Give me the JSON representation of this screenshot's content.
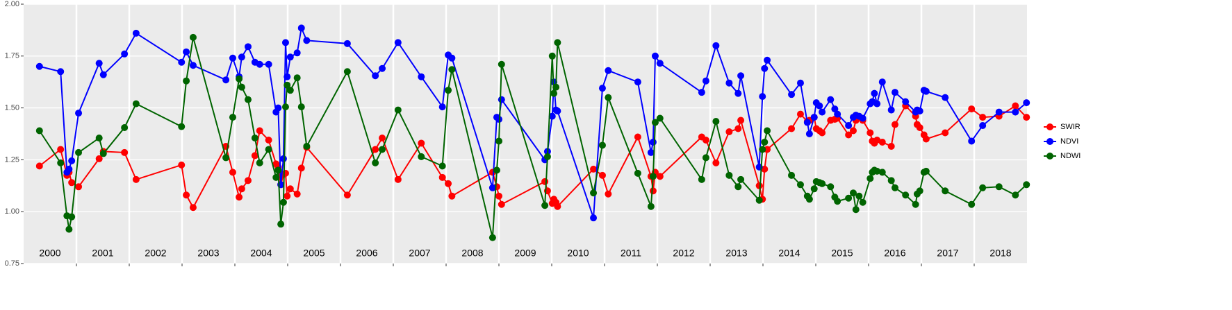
{
  "chart_data": {
    "type": "line",
    "x": [
      2000.3,
      2000.7,
      2000.82,
      2000.86,
      2000.91,
      2001.04,
      2001.43,
      2001.51,
      2001.91,
      2002.13,
      2002.99,
      2003.08,
      2003.21,
      2003.83,
      2003.96,
      2004.08,
      2004.13,
      2004.25,
      2004.38,
      2004.47,
      2004.64,
      2004.78,
      2004.82,
      2004.87,
      2004.92,
      2004.96,
      2004.99,
      2005.05,
      2005.18,
      2005.26,
      2005.36,
      2006.13,
      2006.66,
      2006.79,
      2007.09,
      2007.53,
      2007.93,
      2008.04,
      2008.11,
      2008.88,
      2008.96,
      2009.0,
      2009.05,
      2009.87,
      2009.92,
      2010.01,
      2010.04,
      2010.08,
      2010.11,
      2010.79,
      2010.96,
      2011.07,
      2011.63,
      2011.88,
      2011.92,
      2011.96,
      2012.05,
      2012.84,
      2012.92,
      2013.11,
      2013.36,
      2013.53,
      2013.58,
      2013.93,
      2013.99,
      2014.03,
      2014.08,
      2014.54,
      2014.71,
      2014.84,
      2014.88,
      2014.97,
      2015.01,
      2015.07,
      2015.12,
      2015.28,
      2015.36,
      2015.41,
      2015.62,
      2015.71,
      2015.76,
      2015.82,
      2015.89,
      2016.03,
      2016.07,
      2016.11,
      2016.16,
      2016.26,
      2016.43,
      2016.5,
      2016.7,
      2016.89,
      2016.92,
      2016.97,
      2017.05,
      2017.09,
      2017.45,
      2017.95,
      2018.16,
      2018.47,
      2018.78,
      2018.99
    ],
    "series": [
      {
        "name": "SWIR",
        "color": "#ff0000",
        "values": [
          1.22,
          1.3,
          1.175,
          1.19,
          1.14,
          1.12,
          1.255,
          1.29,
          1.285,
          1.155,
          1.225,
          1.08,
          1.02,
          1.315,
          1.19,
          1.07,
          1.11,
          1.15,
          1.27,
          1.39,
          1.345,
          1.23,
          1.215,
          1.13,
          1.18,
          1.185,
          1.075,
          1.11,
          1.085,
          1.21,
          1.31,
          1.08,
          1.3,
          1.355,
          1.155,
          1.33,
          1.165,
          1.135,
          1.075,
          1.19,
          1.12,
          1.075,
          1.035,
          1.145,
          1.1,
          1.04,
          1.06,
          1.045,
          1.025,
          1.205,
          1.175,
          1.085,
          1.36,
          1.17,
          1.1,
          1.19,
          1.17,
          1.36,
          1.345,
          1.235,
          1.385,
          1.4,
          1.44,
          1.125,
          1.06,
          1.205,
          1.3,
          1.4,
          1.47,
          1.435,
          1.44,
          1.455,
          1.4,
          1.39,
          1.38,
          1.44,
          1.445,
          1.45,
          1.37,
          1.39,
          1.44,
          1.455,
          1.44,
          1.38,
          1.34,
          1.33,
          1.345,
          1.335,
          1.315,
          1.42,
          1.51,
          1.46,
          1.42,
          1.405,
          1.37,
          1.35,
          1.38,
          1.495,
          1.455,
          1.46,
          1.51,
          1.455
        ]
      },
      {
        "name": "NDVI",
        "color": "#0000ff",
        "values": [
          1.7,
          1.675,
          1.19,
          1.205,
          1.245,
          1.475,
          1.715,
          1.66,
          1.76,
          1.86,
          1.72,
          1.77,
          1.705,
          1.635,
          1.74,
          1.65,
          1.745,
          1.795,
          1.72,
          1.71,
          1.71,
          1.48,
          1.5,
          1.13,
          1.255,
          1.815,
          1.65,
          1.745,
          1.765,
          1.885,
          1.825,
          1.81,
          1.655,
          1.69,
          1.815,
          1.65,
          1.505,
          1.755,
          1.74,
          1.115,
          1.455,
          1.445,
          1.54,
          1.25,
          1.29,
          1.46,
          1.625,
          1.49,
          1.485,
          0.97,
          1.595,
          1.68,
          1.625,
          1.285,
          1.335,
          1.75,
          1.715,
          1.575,
          1.63,
          1.8,
          1.62,
          1.57,
          1.655,
          1.215,
          1.555,
          1.69,
          1.73,
          1.565,
          1.62,
          1.43,
          1.375,
          1.455,
          1.525,
          1.51,
          1.48,
          1.54,
          1.495,
          1.47,
          1.415,
          1.455,
          1.465,
          1.46,
          1.45,
          1.52,
          1.53,
          1.57,
          1.52,
          1.625,
          1.49,
          1.575,
          1.53,
          1.48,
          1.49,
          1.485,
          1.585,
          1.58,
          1.55,
          1.34,
          1.415,
          1.48,
          1.48,
          1.525
        ]
      },
      {
        "name": "NDWI",
        "color": "#006400",
        "values": [
          1.39,
          1.235,
          0.98,
          0.915,
          0.975,
          1.285,
          1.355,
          1.28,
          1.405,
          1.52,
          1.41,
          1.63,
          1.84,
          1.26,
          1.455,
          1.64,
          1.6,
          1.54,
          1.355,
          1.235,
          1.3,
          1.165,
          1.2,
          0.94,
          1.045,
          1.505,
          1.61,
          1.585,
          1.645,
          1.505,
          1.315,
          1.675,
          1.235,
          1.3,
          1.49,
          1.265,
          1.22,
          1.585,
          1.685,
          0.875,
          1.2,
          1.34,
          1.71,
          1.03,
          1.265,
          1.75,
          1.57,
          1.6,
          1.815,
          1.09,
          1.32,
          1.55,
          1.185,
          1.025,
          1.17,
          1.43,
          1.45,
          1.155,
          1.26,
          1.435,
          1.175,
          1.12,
          1.155,
          1.055,
          1.3,
          1.335,
          1.39,
          1.175,
          1.13,
          1.075,
          1.06,
          1.11,
          1.145,
          1.14,
          1.135,
          1.12,
          1.07,
          1.05,
          1.065,
          1.09,
          1.01,
          1.075,
          1.045,
          1.16,
          1.19,
          1.2,
          1.195,
          1.19,
          1.15,
          1.115,
          1.08,
          1.035,
          1.085,
          1.1,
          1.19,
          1.195,
          1.1,
          1.035,
          1.115,
          1.12,
          1.08,
          1.13
        ]
      }
    ],
    "xlim": [
      2000,
      2019
    ],
    "xticks": [
      2001,
      2002,
      2003,
      2004,
      2005,
      2006,
      2007,
      2008,
      2009,
      2010,
      2011,
      2012,
      2013,
      2014,
      2015,
      2016,
      2017,
      2018
    ],
    "x_labels": [
      {
        "value": 2000.5,
        "label": "2000"
      },
      {
        "value": 2001.5,
        "label": "2001"
      },
      {
        "value": 2002.5,
        "label": "2002"
      },
      {
        "value": 2003.5,
        "label": "2003"
      },
      {
        "value": 2004.5,
        "label": "2004"
      },
      {
        "value": 2005.5,
        "label": "2005"
      },
      {
        "value": 2006.5,
        "label": "2006"
      },
      {
        "value": 2007.5,
        "label": "2007"
      },
      {
        "value": 2008.5,
        "label": "2008"
      },
      {
        "value": 2009.5,
        "label": "2009"
      },
      {
        "value": 2010.5,
        "label": "2010"
      },
      {
        "value": 2011.5,
        "label": "2011"
      },
      {
        "value": 2012.5,
        "label": "2012"
      },
      {
        "value": 2013.5,
        "label": "2013"
      },
      {
        "value": 2014.5,
        "label": "2014"
      },
      {
        "value": 2015.5,
        "label": "2015"
      },
      {
        "value": 2016.5,
        "label": "2016"
      },
      {
        "value": 2017.5,
        "label": "2017"
      },
      {
        "value": 2018.5,
        "label": "2018"
      }
    ],
    "ylim": [
      0.75,
      2.0
    ],
    "yticks": [
      {
        "value": 0.75,
        "label": "0.75"
      },
      {
        "value": 1.0,
        "label": "1.00"
      },
      {
        "value": 1.25,
        "label": "1.25"
      },
      {
        "value": 1.5,
        "label": "1.50"
      },
      {
        "value": 1.75,
        "label": "1.75"
      },
      {
        "value": 2.0,
        "label": "2.00"
      }
    ],
    "grid": true,
    "legend": "right"
  }
}
